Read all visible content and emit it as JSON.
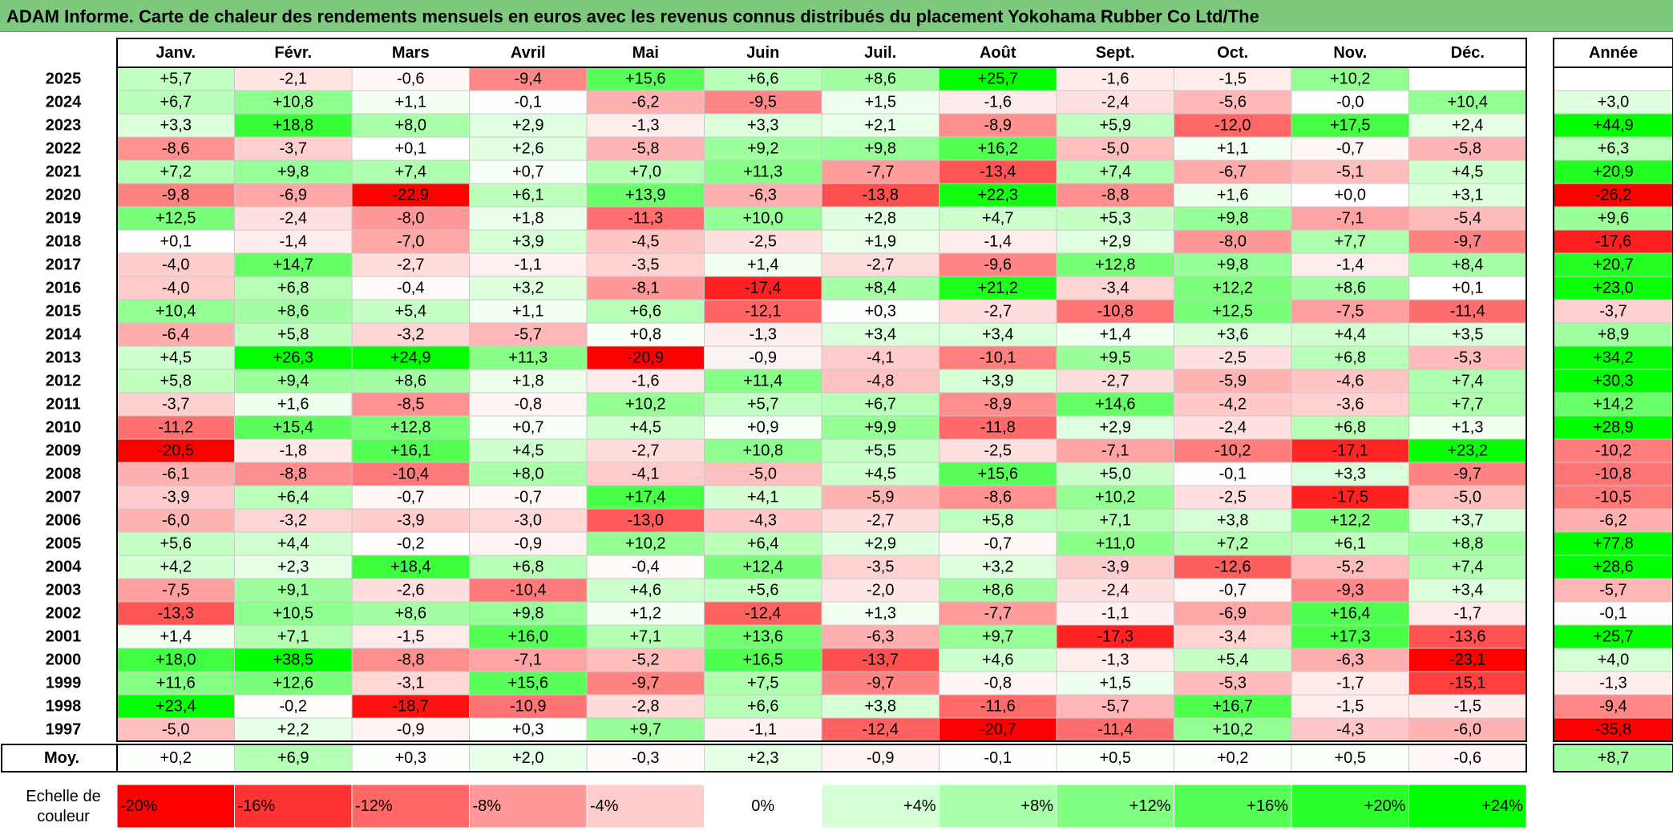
{
  "title": "ADAM Informe. Carte de chaleur des rendements mensuels en euros avec les revenus connus distribués du placement Yokohama Rubber Co Ltd/The",
  "chart_data": {
    "type": "heatmap",
    "columns": [
      "Janv.",
      "Févr.",
      "Mars",
      "Avril",
      "Mai",
      "Juin",
      "Juil.",
      "Août",
      "Sept.",
      "Oct.",
      "Nov.",
      "Déc."
    ],
    "annual_header": "Année",
    "rows": [
      {
        "year": "2025",
        "months": [
          "+5,7",
          "-2,1",
          "-0,6",
          "-9,4",
          "+15,6",
          "+6,6",
          "+8,6",
          "+25,7",
          "-1,6",
          "-1,5",
          "+10,2",
          ""
        ],
        "annual": ""
      },
      {
        "year": "2024",
        "months": [
          "+6,7",
          "+10,8",
          "+1,1",
          "-0,1",
          "-6,2",
          "-9,5",
          "+1,5",
          "-1,6",
          "-2,4",
          "-5,6",
          "-0,0",
          "+10,4"
        ],
        "annual": "+3,0"
      },
      {
        "year": "2023",
        "months": [
          "+3,3",
          "+18,8",
          "+8,0",
          "+2,9",
          "-1,3",
          "+3,3",
          "+2,1",
          "-8,9",
          "+5,9",
          "-12,0",
          "+17,5",
          "+2,4"
        ],
        "annual": "+44,9"
      },
      {
        "year": "2022",
        "months": [
          "-8,6",
          "-3,7",
          "+0,1",
          "+2,6",
          "-5,8",
          "+9,2",
          "+9,8",
          "+16,2",
          "-5,0",
          "+1,1",
          "-0,7",
          "-5,8"
        ],
        "annual": "+6,3"
      },
      {
        "year": "2021",
        "months": [
          "+7,2",
          "+9,8",
          "+7,4",
          "+0,7",
          "+7,0",
          "+11,3",
          "-7,7",
          "-13,4",
          "+7,4",
          "-6,7",
          "-5,1",
          "+4,5"
        ],
        "annual": "+20,9"
      },
      {
        "year": "2020",
        "months": [
          "-9,8",
          "-6,9",
          "-22,9",
          "+6,1",
          "+13,9",
          "-6,3",
          "-13,8",
          "+22,3",
          "-8,8",
          "+1,6",
          "+0,0",
          "+3,1"
        ],
        "annual": "-26,2"
      },
      {
        "year": "2019",
        "months": [
          "+12,5",
          "-2,4",
          "-8,0",
          "+1,8",
          "-11,3",
          "+10,0",
          "+2,8",
          "+4,7",
          "+5,3",
          "+9,8",
          "-7,1",
          "-5,4"
        ],
        "annual": "+9,6"
      },
      {
        "year": "2018",
        "months": [
          "+0,1",
          "-1,4",
          "-7,0",
          "+3,9",
          "-4,5",
          "-2,5",
          "+1,9",
          "-1,4",
          "+2,9",
          "-8,0",
          "+7,7",
          "-9,7"
        ],
        "annual": "-17,6"
      },
      {
        "year": "2017",
        "months": [
          "-4,0",
          "+14,7",
          "-2,7",
          "-1,1",
          "-3,5",
          "+1,4",
          "-2,7",
          "-9,6",
          "+12,8",
          "+9,8",
          "-1,4",
          "+8,4"
        ],
        "annual": "+20,7"
      },
      {
        "year": "2016",
        "months": [
          "-4,0",
          "+6,8",
          "-0,4",
          "+3,2",
          "-8,1",
          "-17,4",
          "+8,4",
          "+21,2",
          "-3,4",
          "+12,2",
          "+8,6",
          "+0,1"
        ],
        "annual": "+23,0"
      },
      {
        "year": "2015",
        "months": [
          "+10,4",
          "+8,6",
          "+5,4",
          "+1,1",
          "+6,6",
          "-12,1",
          "+0,3",
          "-2,7",
          "-10,8",
          "+12,5",
          "-7,5",
          "-11,4"
        ],
        "annual": "-3,7"
      },
      {
        "year": "2014",
        "months": [
          "-6,4",
          "+5,8",
          "-3,2",
          "-5,7",
          "+0,8",
          "-1,3",
          "+3,4",
          "+3,4",
          "+1,4",
          "+3,6",
          "+4,4",
          "+3,5"
        ],
        "annual": "+8,9"
      },
      {
        "year": "2013",
        "months": [
          "+4,5",
          "+26,3",
          "+24,9",
          "+11,3",
          "-20,9",
          "-0,9",
          "-4,1",
          "-10,1",
          "+9,5",
          "-2,5",
          "+6,8",
          "-5,3"
        ],
        "annual": "+34,2"
      },
      {
        "year": "2012",
        "months": [
          "+5,8",
          "+9,4",
          "+8,6",
          "+1,8",
          "-1,6",
          "+11,4",
          "-4,8",
          "+3,9",
          "-2,7",
          "-5,9",
          "-4,6",
          "+7,4"
        ],
        "annual": "+30,3"
      },
      {
        "year": "2011",
        "months": [
          "-3,7",
          "+1,6",
          "-8,5",
          "-0,8",
          "+10,2",
          "+5,7",
          "+6,7",
          "-8,9",
          "+14,6",
          "-4,2",
          "-3,6",
          "+7,7"
        ],
        "annual": "+14,2"
      },
      {
        "year": "2010",
        "months": [
          "-11,2",
          "+15,4",
          "+12,8",
          "+0,7",
          "+4,5",
          "+0,9",
          "+9,9",
          "-11,8",
          "+2,9",
          "-2,4",
          "+6,8",
          "+1,3"
        ],
        "annual": "+28,9"
      },
      {
        "year": "2009",
        "months": [
          "-20,5",
          "-1,8",
          "+16,1",
          "+4,5",
          "-2,7",
          "+10,8",
          "+5,5",
          "-2,5",
          "-7,1",
          "-10,2",
          "-17,1",
          "+23,2"
        ],
        "annual": "-10,2"
      },
      {
        "year": "2008",
        "months": [
          "-6,1",
          "-8,8",
          "-10,4",
          "+8,0",
          "-4,1",
          "-5,0",
          "+4,5",
          "+15,6",
          "+5,0",
          "-0,1",
          "+3,3",
          "-9,7"
        ],
        "annual": "-10,8"
      },
      {
        "year": "2007",
        "months": [
          "-3,9",
          "+6,4",
          "-0,7",
          "-0,7",
          "+17,4",
          "+4,1",
          "-5,9",
          "-8,6",
          "+10,2",
          "-2,5",
          "-17,5",
          "-5,0"
        ],
        "annual": "-10,5"
      },
      {
        "year": "2006",
        "months": [
          "-6,0",
          "-3,2",
          "-3,9",
          "-3,0",
          "-13,0",
          "-4,3",
          "-2,7",
          "+5,8",
          "+7,1",
          "+3,8",
          "+12,2",
          "+3,7"
        ],
        "annual": "-6,2"
      },
      {
        "year": "2005",
        "months": [
          "+5,6",
          "+4,4",
          "-0,2",
          "-0,9",
          "+10,2",
          "+6,4",
          "+2,9",
          "-0,7",
          "+11,0",
          "+7,2",
          "+6,1",
          "+8,8"
        ],
        "annual": "+77,8"
      },
      {
        "year": "2004",
        "months": [
          "+4,2",
          "+2,3",
          "+18,4",
          "+6,8",
          "-0,4",
          "+12,4",
          "-3,5",
          "+3,2",
          "-3,9",
          "-12,6",
          "-5,2",
          "+7,4"
        ],
        "annual": "+28,6"
      },
      {
        "year": "2003",
        "months": [
          "-7,5",
          "+9,1",
          "-2,6",
          "-10,4",
          "+4,6",
          "+5,6",
          "-2,0",
          "+8,6",
          "-2,4",
          "-0,7",
          "-9,3",
          "+3,4"
        ],
        "annual": "-5,7"
      },
      {
        "year": "2002",
        "months": [
          "-13,3",
          "+10,5",
          "+8,6",
          "+9,8",
          "+1,2",
          "-12,4",
          "+1,3",
          "-7,7",
          "-1,1",
          "-6,9",
          "+16,4",
          "-1,7"
        ],
        "annual": "-0,1"
      },
      {
        "year": "2001",
        "months": [
          "+1,4",
          "+7,1",
          "-1,5",
          "+16,0",
          "+7,1",
          "+13,6",
          "-6,3",
          "+9,7",
          "-17,3",
          "-3,4",
          "+17,3",
          "-13,6"
        ],
        "annual": "+25,7"
      },
      {
        "year": "2000",
        "months": [
          "+18,0",
          "+38,5",
          "-8,8",
          "-7,1",
          "-5,2",
          "+16,5",
          "-13,7",
          "+4,6",
          "-1,3",
          "+5,4",
          "-6,3",
          "-23,1"
        ],
        "annual": "+4,0"
      },
      {
        "year": "1999",
        "months": [
          "+11,6",
          "+12,6",
          "-3,1",
          "+15,6",
          "-9,7",
          "+7,5",
          "-9,7",
          "-0,8",
          "+1,5",
          "-5,3",
          "-1,7",
          "-15,1"
        ],
        "annual": "-1,3"
      },
      {
        "year": "1998",
        "months": [
          "+23,4",
          "-0,2",
          "-18,7",
          "-10,9",
          "-2,8",
          "+6,6",
          "+3,8",
          "-11,6",
          "-5,7",
          "+16,7",
          "-1,5",
          "-1,5"
        ],
        "annual": "-9,4"
      },
      {
        "year": "1997",
        "months": [
          "-5,0",
          "+2,2",
          "-0,9",
          "+0,3",
          "+9,7",
          "-1,1",
          "-12,4",
          "-20,7",
          "-11,4",
          "+10,2",
          "-4,3",
          "-6,0"
        ],
        "annual": "-35,8"
      }
    ],
    "average": {
      "label": "Moy.",
      "months": [
        "+0,2",
        "+6,9",
        "+0,3",
        "+2,0",
        "-0,3",
        "+2,3",
        "-0,9",
        "-0,1",
        "+0,5",
        "+0,2",
        "+0,5",
        "-0,6"
      ],
      "annual": "+8,7"
    },
    "color_scale": {
      "label_lines": [
        "Echelle de",
        "couleur"
      ],
      "steps": [
        {
          "label": "-20%",
          "value": -20
        },
        {
          "label": "-16%",
          "value": -16
        },
        {
          "label": "-12%",
          "value": -12
        },
        {
          "label": "-8%",
          "value": -8
        },
        {
          "label": "-4%",
          "value": -4
        },
        {
          "label": "0%",
          "value": 0
        },
        {
          "label": "+4%",
          "value": 4
        },
        {
          "label": "+8%",
          "value": 8
        },
        {
          "label": "+12%",
          "value": 12
        },
        {
          "label": "+16%",
          "value": 16
        },
        {
          "label": "+20%",
          "value": 20
        },
        {
          "label": "+24%",
          "value": 24
        }
      ],
      "negative_color": "#ff0000",
      "neutral_color": "#ffffff",
      "positive_color": "#00ff00"
    }
  }
}
